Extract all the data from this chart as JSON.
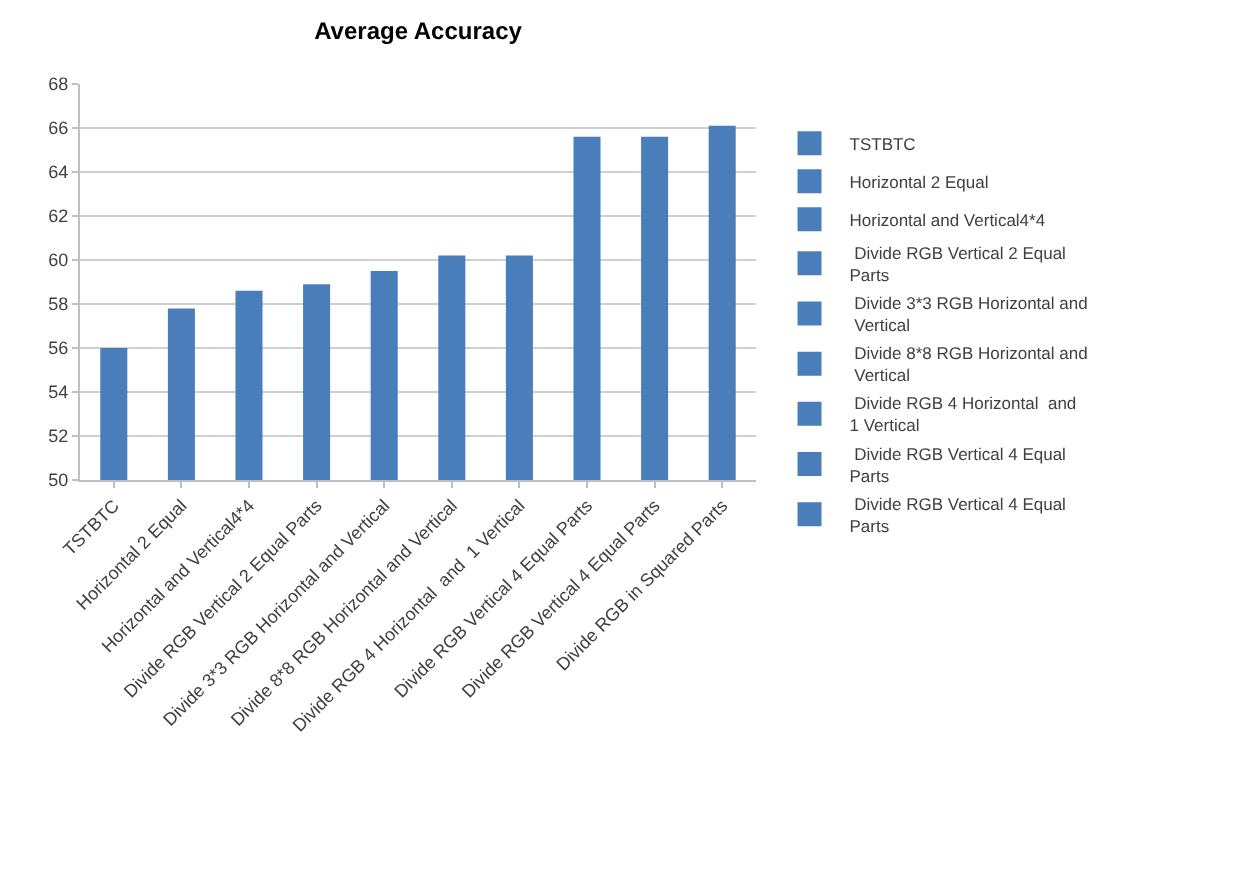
{
  "chart_data": {
    "type": "bar",
    "title": "Average Accuracy",
    "categories": [
      "TSTBTC",
      "Horizontal 2 Equal",
      "Horizontal and Vertical4*4",
      "Divide RGB Vertical 2 Equal Parts",
      "Divide 3*3 RGB Horizontal and Vertical",
      "Divide 8*8 RGB Horizontal and Vertical",
      "Divide RGB 4 Horizontal  and  1 Vertical",
      "Divide RGB Vertical 4 Equal Parts",
      "Divide RGB Vertical 4 Equal Parts",
      "Divide RGB in Squared Parts"
    ],
    "series": [
      {
        "name": "TSTBTC",
        "color": "#4a7ebb",
        "values": [
          56.0,
          null,
          null,
          null,
          null,
          null,
          null,
          null,
          null,
          null
        ]
      },
      {
        "name": "Horizontal 2 Equal",
        "color": "#4a7ebb",
        "values": [
          null,
          57.8,
          null,
          null,
          null,
          null,
          null,
          null,
          null,
          null
        ]
      },
      {
        "name": "Horizontal and Vertical4*4",
        "color": "#4a7ebb",
        "values": [
          null,
          null,
          58.6,
          null,
          null,
          null,
          null,
          null,
          null,
          null
        ]
      },
      {
        "name": " Divide RGB Vertical 2 Equal Parts",
        "color": "#4a7ebb",
        "values": [
          null,
          null,
          null,
          58.9,
          null,
          null,
          null,
          null,
          null,
          null
        ]
      },
      {
        "name": " Divide 3*3 RGB Horizontal and Vertical",
        "color": "#4a7ebb",
        "values": [
          null,
          null,
          null,
          null,
          59.5,
          null,
          null,
          null,
          null,
          null
        ]
      },
      {
        "name": " Divide 8*8 RGB Horizontal and Vertical",
        "color": "#4a7ebb",
        "values": [
          null,
          null,
          null,
          null,
          null,
          60.2,
          null,
          null,
          null,
          null
        ]
      },
      {
        "name": " Divide RGB 4 Horizontal  and 1 Vertical",
        "color": "#4a7ebb",
        "values": [
          null,
          null,
          null,
          null,
          null,
          null,
          60.2,
          null,
          null,
          null
        ]
      },
      {
        "name": " Divide RGB Vertical 4 Equal Parts",
        "color": "#4a7ebb",
        "values": [
          null,
          null,
          null,
          null,
          null,
          null,
          null,
          65.6,
          null,
          null
        ]
      },
      {
        "name": " Divide RGB Vertical 4 Equal Parts",
        "color": "#4a7ebb",
        "values": [
          null,
          null,
          null,
          null,
          null,
          null,
          null,
          null,
          65.6,
          null
        ]
      },
      {
        "color": "#4a7ebb",
        "values": [
          null,
          null,
          null,
          null,
          null,
          null,
          null,
          null,
          null,
          66.1
        ]
      }
    ],
    "ylim": [
      50,
      68
    ],
    "yticks": [
      50,
      52,
      54,
      56,
      58,
      60,
      62,
      64,
      66,
      68
    ],
    "grid": "y",
    "legend": "right"
  }
}
